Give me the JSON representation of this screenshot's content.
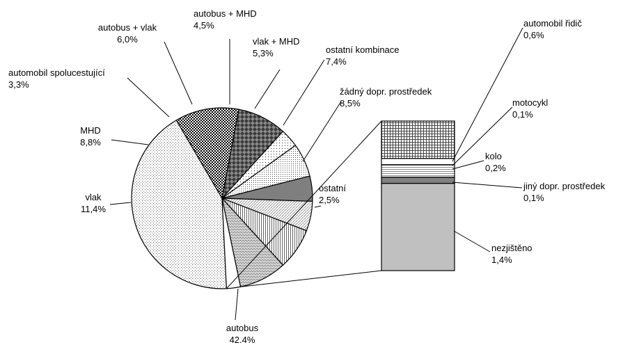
{
  "chart_data": [
    {
      "type": "pie",
      "slices": [
        {
          "label": "autobus",
          "value": 42.4,
          "value_label": "42.4%",
          "fill": "pat-dots-light"
        },
        {
          "label": "vlak",
          "value": 11.4,
          "value_label": "11,4%",
          "fill": "pat-check"
        },
        {
          "label": "MHD",
          "value": 8.8,
          "value_label": "8,8%",
          "fill": "pat-diamond-dark"
        },
        {
          "label": "automobil spolucestující",
          "value": 3.3,
          "value_label": "3,3%",
          "fill": "pat-sparse"
        },
        {
          "label": "autobus + vlak",
          "value": 6.0,
          "value_label": "6,0%",
          "fill": "pat-sparse2"
        },
        {
          "label": "autobus + MHD",
          "value": 4.5,
          "value_label": "4,5%",
          "fill": "#7f7f7f"
        },
        {
          "label": "vlak + MHD",
          "value": 5.3,
          "value_label": "5,3%",
          "fill": "pat-diag-light"
        },
        {
          "label": "ostatní kombinace",
          "value": 7.4,
          "value_label": "7,4%",
          "fill": "pat-vert"
        },
        {
          "label": "žádný dopr. prostředek",
          "value": 8.5,
          "value_label": "8,5%",
          "fill": "pat-wave"
        },
        {
          "label": "ostatní",
          "value": 2.5,
          "value_label": "2,5%",
          "fill": "#ffffff"
        }
      ],
      "exploded_slice": "ostatní"
    },
    {
      "type": "bar",
      "stacked": true,
      "breakdown_of": "ostatní",
      "segments": [
        {
          "label": "nezjištěno",
          "value": 1.4,
          "value_label": "1,4%",
          "fill": "#c0c0c0"
        },
        {
          "label": "jiný dopr. prostředek",
          "value": 0.1,
          "value_label": "0,1%",
          "fill": "#808080"
        },
        {
          "label": "kolo",
          "value": 0.2,
          "value_label": "0,2%",
          "fill": "pat-hlines"
        },
        {
          "label": "motocykl",
          "value": 0.1,
          "value_label": "0,1%",
          "fill": "#ffffff"
        },
        {
          "label": "automobil řidič",
          "value": 0.6,
          "value_label": "0,6%",
          "fill": "pat-grid"
        }
      ]
    }
  ]
}
